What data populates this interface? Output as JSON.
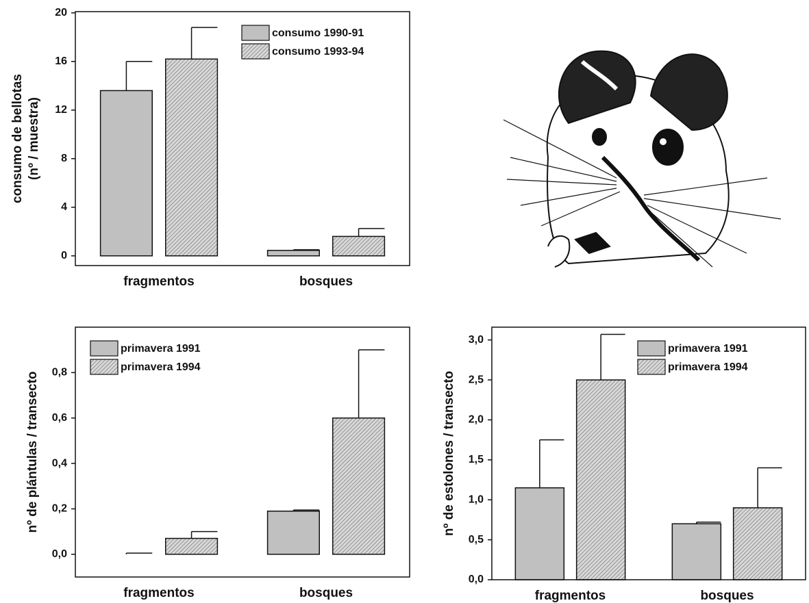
{
  "chart_data": [
    {
      "type": "bar",
      "ylabel": [
        "consumo de bellotas",
        "(nº / muestra)"
      ],
      "categories": [
        "fragmentos",
        "bosques"
      ],
      "series": [
        {
          "name": "consumo 1990-91",
          "color": "#c0c0c0",
          "hatch": false,
          "values": [
            13.6,
            0.45
          ],
          "errors": [
            2.4,
            0.05
          ]
        },
        {
          "name": "consumo 1993-94",
          "color": "#c0c0c0",
          "hatch": true,
          "values": [
            16.2,
            1.6
          ],
          "errors": [
            2.6,
            0.65
          ]
        }
      ],
      "ylim": [
        -0.8,
        20.1
      ],
      "yticks": [
        0,
        4,
        8,
        12,
        16,
        20
      ],
      "legend": "upper right"
    },
    {
      "type": "bar",
      "ylabel": [
        "nº de plántulas / transecto"
      ],
      "categories": [
        "fragmentos",
        "bosques"
      ],
      "series": [
        {
          "name": "primavera 1991",
          "color": "#c0c0c0",
          "hatch": false,
          "values": [
            0.0,
            0.19
          ],
          "errors": [
            0.005,
            0.005
          ]
        },
        {
          "name": "primavera 1994",
          "color": "#c0c0c0",
          "hatch": true,
          "values": [
            0.07,
            0.6
          ],
          "errors": [
            0.03,
            0.3
          ]
        }
      ],
      "ylim": [
        -0.1,
        1.0
      ],
      "yticks": [
        {
          "value": 0.0,
          "label": "0,0"
        },
        {
          "value": 0.2,
          "label": "0,2"
        },
        {
          "value": 0.4,
          "label": "0,4"
        },
        {
          "value": 0.6,
          "label": "0,6"
        },
        {
          "value": 0.8,
          "label": "0,8"
        }
      ],
      "legend": "upper left"
    },
    {
      "type": "bar",
      "ylabel": [
        "nº de estolones / transecto"
      ],
      "categories": [
        "fragmentos",
        "bosques"
      ],
      "series": [
        {
          "name": "primavera 1991",
          "color": "#c0c0c0",
          "hatch": false,
          "values": [
            1.15,
            0.7
          ],
          "errors": [
            0.6,
            0.02
          ]
        },
        {
          "name": "primavera 1994",
          "color": "#c0c0c0",
          "hatch": true,
          "values": [
            2.5,
            0.9
          ],
          "errors": [
            0.57,
            0.5
          ]
        }
      ],
      "ylim": [
        0,
        3.16
      ],
      "yticks": [
        {
          "value": 0,
          "label": "0,0"
        },
        {
          "value": 0.5,
          "label": "0,5"
        },
        {
          "value": 1.0,
          "label": "1,0"
        },
        {
          "value": 1.5,
          "label": "1,5"
        },
        {
          "value": 2.0,
          "label": "2,0"
        },
        {
          "value": 2.5,
          "label": "2,5"
        },
        {
          "value": 3.0,
          "label": "3,0"
        }
      ],
      "legend": "upper right"
    }
  ]
}
